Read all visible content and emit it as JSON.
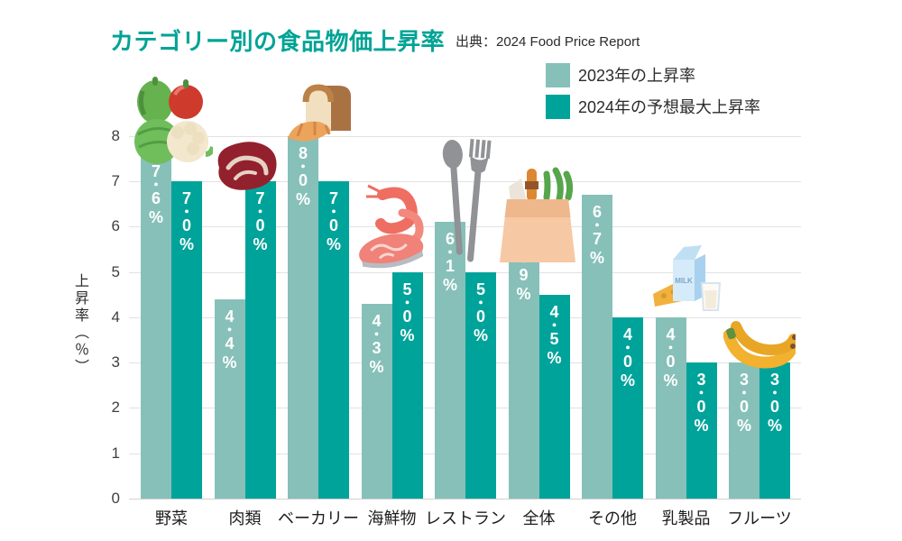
{
  "header": {
    "title": "カテゴリー別の食品物価上昇率",
    "source": "出典：2024 Food Price Report"
  },
  "legend": [
    {
      "label": "2023年の上昇率",
      "color": "#86c0b9"
    },
    {
      "label": "2024年の予想最大上昇率",
      "color": "#00a39a"
    }
  ],
  "chart_data": {
    "type": "bar",
    "title": "カテゴリー別の食品物価上昇率",
    "source": "出典：2024 Food Price Report",
    "ylabel": "上昇率（％）",
    "ylim": [
      0,
      8
    ],
    "yticks": [
      0,
      1,
      2,
      3,
      4,
      5,
      6,
      7,
      8
    ],
    "grid": true,
    "legend_position": "top-right",
    "categories": [
      "野菜",
      "肉類",
      "ベーカリー",
      "海鮮物",
      "レストラン",
      "全体",
      "その他",
      "乳製品",
      "フルーツ"
    ],
    "series": [
      {
        "name": "2023年の上昇率",
        "color": "#86c0b9",
        "values": [
          7.6,
          4.4,
          8.0,
          4.3,
          6.1,
          5.9,
          6.7,
          4.0,
          3.0
        ],
        "bar_labels": [
          "7・6%",
          "4・4%",
          "8・0%",
          "4・3%",
          "6・1%",
          "5・9%",
          "6・7%",
          "4・0%",
          "3・0%"
        ]
      },
      {
        "name": "2024年の予想最大上昇率",
        "color": "#00a39a",
        "values": [
          7.0,
          7.0,
          7.0,
          5.0,
          5.0,
          4.5,
          4.0,
          3.0,
          3.0
        ],
        "bar_labels": [
          "7・0%",
          "7・0%",
          "7・0%",
          "5・0%",
          "5・0%",
          "4・5%",
          "4・0%",
          "3・0%",
          "3・0%"
        ]
      }
    ],
    "category_icons": [
      "vegetables-icon",
      "meat-icon",
      "bread-icon",
      "seafood-icon",
      "cutlery-icon",
      "grocery-bag-icon",
      null,
      "milk-icon",
      "banana-icon"
    ],
    "dairy_icon_text": "MILK"
  }
}
